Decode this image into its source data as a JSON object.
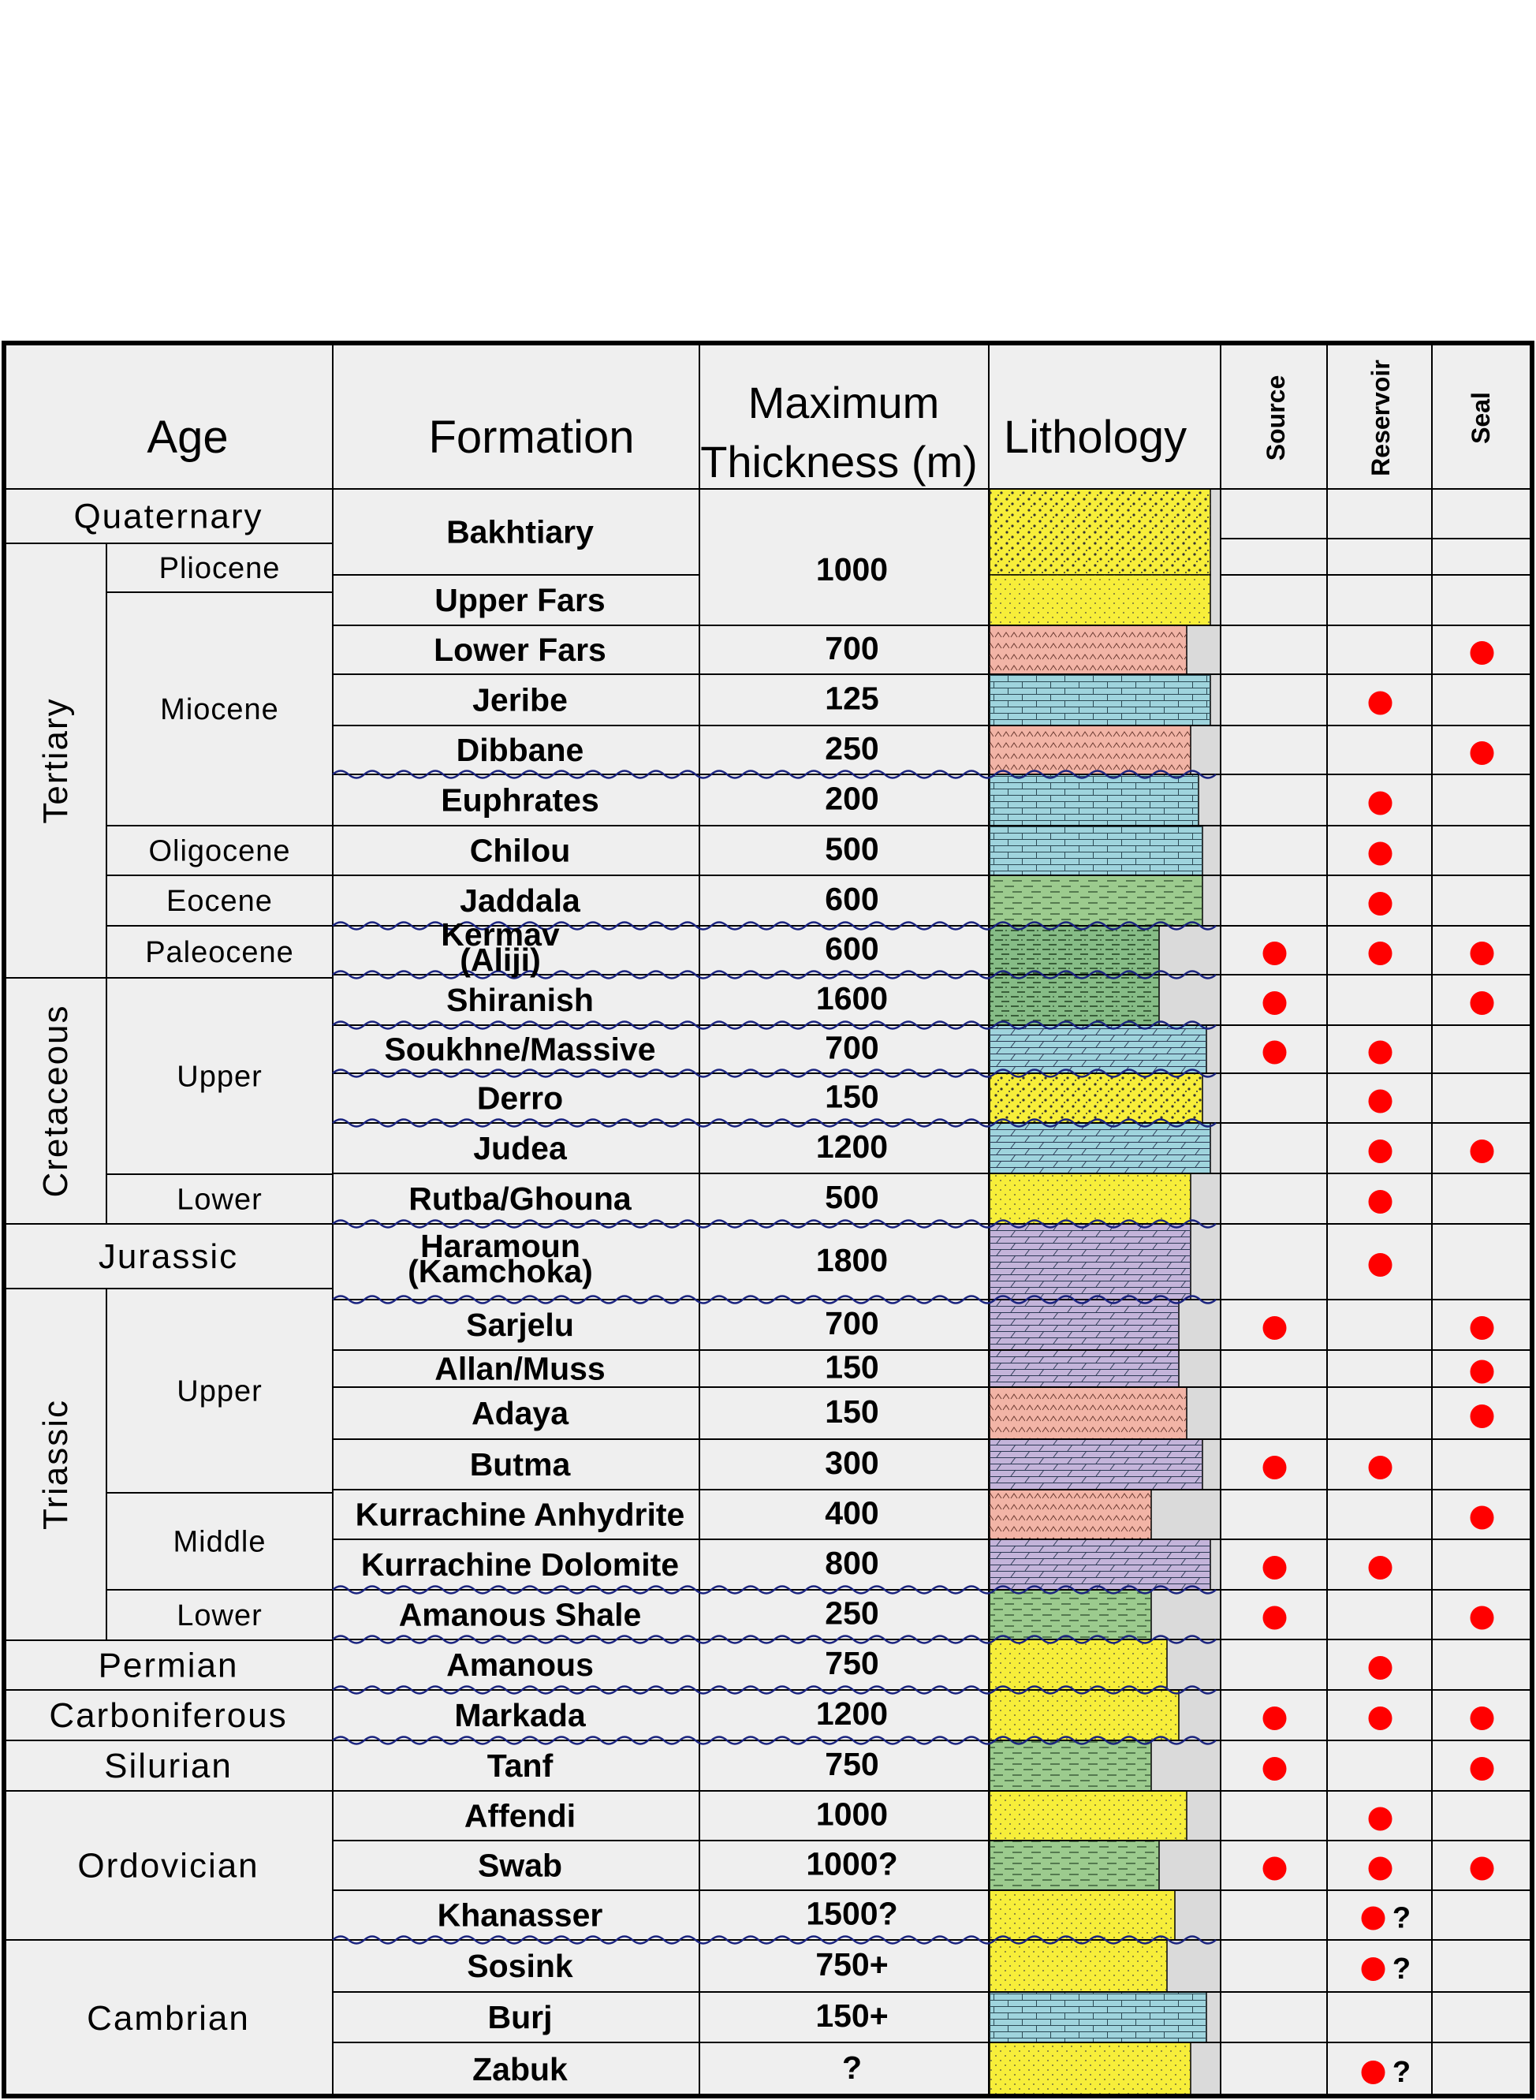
{
  "headers": {
    "age": "Age",
    "formation": "Formation",
    "thickness_line1": "Maximum",
    "thickness_line2": "Thickness (m)",
    "lithology": "Lithology",
    "source": "Source",
    "reservoir": "Reservoir",
    "seal": "Seal"
  },
  "periods": [
    {
      "label": "Quaternary",
      "rows": [
        0,
        0
      ],
      "rotated": false
    },
    {
      "label": "Tertiary",
      "rows": [
        0,
        8
      ],
      "rotated": true
    },
    {
      "label": "Cretaceous",
      "rows": [
        8,
        14
      ],
      "rotated": true
    },
    {
      "label": "Jurassic",
      "rows": [
        14,
        15
      ],
      "rotated": false
    },
    {
      "label": "Triassic",
      "rows": [
        15,
        22
      ],
      "rotated": true
    },
    {
      "label": "Permian",
      "rows": [
        22,
        23
      ],
      "rotated": false
    },
    {
      "label": "Carboniferous",
      "rows": [
        23,
        24
      ],
      "rotated": false
    },
    {
      "label": "Silurian",
      "rows": [
        24,
        25
      ],
      "rotated": false
    },
    {
      "label": "Ordovician",
      "rows": [
        25,
        28
      ],
      "rotated": false
    },
    {
      "label": "Cambrian",
      "rows": [
        28,
        31
      ],
      "rotated": false
    }
  ],
  "epochs": [
    {
      "label": "Pliocene",
      "rows": [
        0,
        1
      ]
    },
    {
      "label": "Miocene",
      "rows": [
        1,
        5
      ]
    },
    {
      "label": "Oligocene",
      "rows": [
        5,
        6
      ]
    },
    {
      "label": "Eocene",
      "rows": [
        6,
        7
      ]
    },
    {
      "label": "Paleocene",
      "rows": [
        7,
        8
      ]
    },
    {
      "label": "Upper",
      "rows": [
        8,
        12
      ]
    },
    {
      "label": "Lower",
      "rows": [
        12,
        13
      ]
    },
    {
      "label": "Upper",
      "rows": [
        15,
        19
      ]
    },
    {
      "label": "Middle",
      "rows": [
        19,
        21
      ]
    },
    {
      "label": "Lower",
      "rows": [
        21,
        22
      ]
    }
  ],
  "formations": [
    {
      "name": "Bakhtiary",
      "thickness": "1000",
      "source": false,
      "reservoir": false,
      "seal": false,
      "uncertain": false
    },
    {
      "name": "Upper Fars",
      "thickness": "",
      "source": false,
      "reservoir": false,
      "seal": false,
      "uncertain": false
    },
    {
      "name": "Lower Fars",
      "thickness": "700",
      "source": false,
      "reservoir": false,
      "seal": true,
      "uncertain": false
    },
    {
      "name": "Jeribe",
      "thickness": "125",
      "source": false,
      "reservoir": true,
      "seal": false,
      "uncertain": false
    },
    {
      "name": "Dibbane",
      "thickness": "250",
      "source": false,
      "reservoir": false,
      "seal": true,
      "uncertain": false
    },
    {
      "name": "Euphrates",
      "thickness": "200",
      "source": false,
      "reservoir": true,
      "seal": false,
      "uncertain": false
    },
    {
      "name": "Chilou",
      "thickness": "500",
      "source": false,
      "reservoir": true,
      "seal": false,
      "uncertain": false
    },
    {
      "name": "Jaddala",
      "thickness": "600",
      "source": false,
      "reservoir": true,
      "seal": false,
      "uncertain": false
    },
    {
      "name": "Kermav (Aliji)",
      "thickness": "600",
      "source": true,
      "reservoir": true,
      "seal": true,
      "uncertain": false
    },
    {
      "name": "Shiranish",
      "thickness": "1600",
      "source": true,
      "reservoir": false,
      "seal": true,
      "uncertain": false
    },
    {
      "name": "Soukhne/Massive",
      "thickness": "700",
      "source": true,
      "reservoir": true,
      "seal": false,
      "uncertain": false
    },
    {
      "name": "Derro",
      "thickness": "150",
      "source": false,
      "reservoir": true,
      "seal": false,
      "uncertain": false
    },
    {
      "name": "Judea",
      "thickness": "1200",
      "source": false,
      "reservoir": true,
      "seal": true,
      "uncertain": false
    },
    {
      "name": "Rutba/Ghouna",
      "thickness": "500",
      "source": false,
      "reservoir": true,
      "seal": false,
      "uncertain": false
    },
    {
      "name": "Haramoun (Kamchoka)",
      "thickness": "1800",
      "source": false,
      "reservoir": true,
      "seal": false,
      "uncertain": false
    },
    {
      "name": "Sarjelu",
      "thickness": "700",
      "source": true,
      "reservoir": false,
      "seal": true,
      "uncertain": false
    },
    {
      "name": "Allan/Muss",
      "thickness": "150",
      "source": false,
      "reservoir": false,
      "seal": true,
      "uncertain": false
    },
    {
      "name": "Adaya",
      "thickness": "150",
      "source": false,
      "reservoir": false,
      "seal": true,
      "uncertain": false
    },
    {
      "name": "Butma",
      "thickness": "300",
      "source": true,
      "reservoir": true,
      "seal": false,
      "uncertain": false
    },
    {
      "name": "Kurrachine Anhydrite",
      "thickness": "400",
      "source": false,
      "reservoir": false,
      "seal": true,
      "uncertain": false
    },
    {
      "name": "Kurrachine Dolomite",
      "thickness": "800",
      "source": true,
      "reservoir": true,
      "seal": false,
      "uncertain": false
    },
    {
      "name": "Amanous Shale",
      "thickness": "250",
      "source": true,
      "reservoir": false,
      "seal": true,
      "uncertain": false
    },
    {
      "name": "Amanous",
      "thickness": "750",
      "source": false,
      "reservoir": true,
      "seal": false,
      "uncertain": false
    },
    {
      "name": "Markada",
      "thickness": "1200",
      "source": true,
      "reservoir": true,
      "seal": true,
      "uncertain": false
    },
    {
      "name": "Tanf",
      "thickness": "750",
      "source": true,
      "reservoir": false,
      "seal": true,
      "uncertain": false
    },
    {
      "name": "Affendi",
      "thickness": "1000",
      "source": false,
      "reservoir": true,
      "seal": false,
      "uncertain": false
    },
    {
      "name": "Swab",
      "thickness": "1000?",
      "source": true,
      "reservoir": true,
      "seal": true,
      "uncertain": false
    },
    {
      "name": "Khanasser",
      "thickness": "1500?",
      "source": false,
      "reservoir": true,
      "seal": false,
      "uncertain": true
    },
    {
      "name": "Sosink",
      "thickness": "750+",
      "source": false,
      "reservoir": true,
      "seal": false,
      "uncertain": true
    },
    {
      "name": "Burj",
      "thickness": "150+",
      "source": false,
      "reservoir": false,
      "seal": false,
      "uncertain": false
    },
    {
      "name": "Zabuk",
      "thickness": "?",
      "source": false,
      "reservoir": true,
      "seal": false,
      "uncertain": true
    }
  ],
  "uncertain_mark": "?",
  "unconformities_after_rows": [
    4,
    7,
    8,
    9,
    10,
    11,
    13,
    14,
    20,
    21,
    22,
    23,
    27
  ],
  "lithology": [
    {
      "rows": [
        0,
        0
      ],
      "pattern": "conglomerate",
      "color": "#F7EE3A"
    },
    {
      "rows": [
        1,
        1
      ],
      "pattern": "sandstone",
      "color": "#F7EE3A"
    },
    {
      "rows": [
        2,
        2
      ],
      "pattern": "anhydrite",
      "color": "#F2B4A6"
    },
    {
      "rows": [
        3,
        3
      ],
      "pattern": "limestone",
      "color": "#9FD4DD"
    },
    {
      "rows": [
        4,
        4
      ],
      "pattern": "anhydrite",
      "color": "#F2B4A6"
    },
    {
      "rows": [
        5,
        5
      ],
      "pattern": "limestone",
      "color": "#9FD4DD"
    },
    {
      "rows": [
        6,
        6
      ],
      "pattern": "limestone",
      "color": "#9FD4DD"
    },
    {
      "rows": [
        7,
        7
      ],
      "pattern": "marl",
      "color": "#9CCB8E"
    },
    {
      "rows": [
        8,
        8
      ],
      "pattern": "shale",
      "color": "#86BC86"
    },
    {
      "rows": [
        9,
        9
      ],
      "pattern": "shale",
      "color": "#86BC86"
    },
    {
      "rows": [
        10,
        10
      ],
      "pattern": "dolomite",
      "color": "#9FD4DD"
    },
    {
      "rows": [
        11,
        11
      ],
      "pattern": "conglomerate",
      "color": "#F7EE3A"
    },
    {
      "rows": [
        12,
        12
      ],
      "pattern": "dolomite",
      "color": "#9FD4DD"
    },
    {
      "rows": [
        13,
        13
      ],
      "pattern": "sandstone",
      "color": "#F7EE3A"
    },
    {
      "rows": [
        14,
        14
      ],
      "pattern": "dolomite",
      "color": "#C4B4DA"
    },
    {
      "rows": [
        15,
        15
      ],
      "pattern": "dolomite",
      "color": "#C4B4DA"
    },
    {
      "rows": [
        16,
        16
      ],
      "pattern": "dolomite",
      "color": "#C4B4DA"
    },
    {
      "rows": [
        17,
        17
      ],
      "pattern": "anhydrite",
      "color": "#F2B4A6"
    },
    {
      "rows": [
        18,
        18
      ],
      "pattern": "dolomite",
      "color": "#C4B4DA"
    },
    {
      "rows": [
        19,
        19
      ],
      "pattern": "anhydrite",
      "color": "#F2B4A6"
    },
    {
      "rows": [
        20,
        20
      ],
      "pattern": "dolomite",
      "color": "#C4B4DA"
    },
    {
      "rows": [
        21,
        21
      ],
      "pattern": "marl",
      "color": "#9CCB8E"
    },
    {
      "rows": [
        22,
        22
      ],
      "pattern": "sandstone",
      "color": "#F7EE3A"
    },
    {
      "rows": [
        23,
        23
      ],
      "pattern": "sandstone",
      "color": "#F7EE3A"
    },
    {
      "rows": [
        24,
        24
      ],
      "pattern": "marl",
      "color": "#9CCB8E"
    },
    {
      "rows": [
        25,
        25
      ],
      "pattern": "sandstone",
      "color": "#F7EE3A"
    },
    {
      "rows": [
        26,
        26
      ],
      "pattern": "marl",
      "color": "#9CCB8E"
    },
    {
      "rows": [
        27,
        27
      ],
      "pattern": "sandstone",
      "color": "#F7EE3A"
    },
    {
      "rows": [
        28,
        28
      ],
      "pattern": "sandstone",
      "color": "#F7EE3A"
    },
    {
      "rows": [
        29,
        29
      ],
      "pattern": "limestone",
      "color": "#9FD4DD"
    },
    {
      "rows": [
        30,
        30
      ],
      "pattern": "sandstone",
      "color": "#F7EE3A"
    }
  ],
  "colors": {
    "table_fill": "#EFEFEF",
    "border": "#000000",
    "dot": "#FF0000",
    "unconformity": "#1A237E",
    "profile_bg": "#DADADA"
  }
}
